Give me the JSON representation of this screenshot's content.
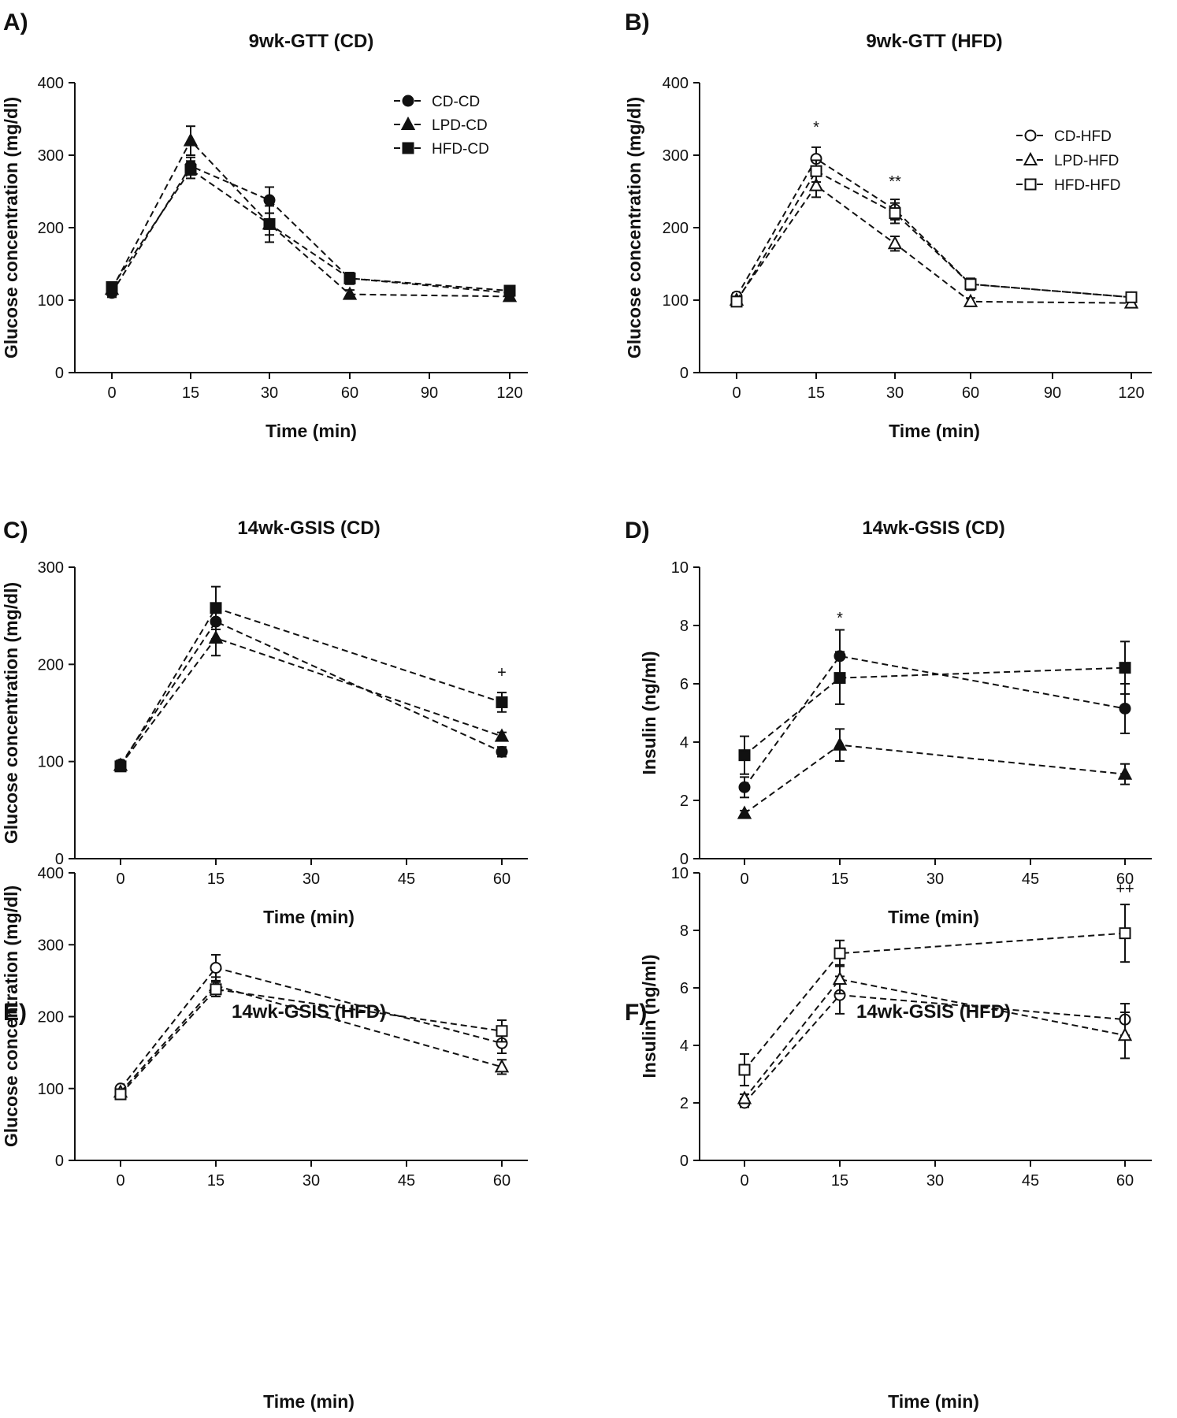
{
  "chart_data": [
    {
      "type": "line",
      "panel_label": "A)",
      "title": "9wk-GTT (CD)",
      "xlabel": "Time (min)",
      "ylabel": "Glucose concentration (mg/dl)",
      "x_ticks": [
        "0",
        "15",
        "30",
        "60",
        "90",
        "120"
      ],
      "ylim": [
        0,
        400
      ],
      "y_ticks": [
        0,
        100,
        200,
        300,
        400
      ],
      "legend_position": "top-right",
      "series": [
        {
          "name": "CD-CD",
          "marker": "circle",
          "fill": "filled",
          "x_index": [
            0,
            1,
            2,
            3,
            5
          ],
          "values": [
            110,
            285,
            238,
            130,
            110
          ],
          "errors": [
            6,
            12,
            18,
            8,
            5
          ]
        },
        {
          "name": "LPD-CD",
          "marker": "triangle",
          "fill": "filled",
          "x_index": [
            0,
            1,
            2,
            3,
            5
          ],
          "values": [
            115,
            320,
            205,
            108,
            105
          ],
          "errors": [
            6,
            20,
            25,
            6,
            5
          ]
        },
        {
          "name": "HFD-CD",
          "marker": "square",
          "fill": "filled",
          "x_index": [
            0,
            1,
            2,
            3,
            5
          ],
          "values": [
            118,
            280,
            205,
            130,
            113
          ],
          "errors": [
            6,
            12,
            15,
            6,
            5
          ]
        }
      ],
      "annotations": []
    },
    {
      "type": "line",
      "panel_label": "B)",
      "title": "9wk-GTT (HFD)",
      "xlabel": "Time (min)",
      "ylabel": "Glucose concentration (mg/dl)",
      "x_ticks": [
        "0",
        "15",
        "30",
        "60",
        "90",
        "120"
      ],
      "ylim": [
        0,
        400
      ],
      "y_ticks": [
        0,
        100,
        200,
        300,
        400
      ],
      "legend_position": "top-right",
      "series": [
        {
          "name": "CD-HFD",
          "marker": "circle",
          "fill": "open",
          "x_index": [
            0,
            1,
            2,
            3,
            5
          ],
          "values": [
            105,
            295,
            225,
            122,
            104
          ],
          "errors": [
            5,
            16,
            14,
            8,
            5
          ]
        },
        {
          "name": "LPD-HFD",
          "marker": "triangle",
          "fill": "open",
          "x_index": [
            0,
            1,
            2,
            3,
            5
          ],
          "values": [
            100,
            258,
            178,
            98,
            96
          ],
          "errors": [
            5,
            16,
            10,
            5,
            5
          ]
        },
        {
          "name": "HFD-HFD",
          "marker": "square",
          "fill": "open",
          "x_index": [
            0,
            1,
            2,
            3,
            5
          ],
          "values": [
            98,
            278,
            220,
            122,
            104
          ],
          "errors": [
            5,
            15,
            14,
            8,
            5
          ]
        }
      ],
      "annotations": [
        {
          "text": "*",
          "x_index": 1,
          "y": 340
        },
        {
          "text": "**",
          "x_index": 2,
          "y": 265
        }
      ]
    },
    {
      "type": "line",
      "panel_label": "C)",
      "title": "14wk-GSIS (CD)",
      "xlabel": "Time (min)",
      "ylabel": "Glucose concentration (mg/dl)",
      "x_ticks": [
        "0",
        "15",
        "30",
        "45",
        "60"
      ],
      "x_values": [
        0,
        15,
        30,
        45,
        60
      ],
      "ylim": [
        0,
        300
      ],
      "y_ticks": [
        0,
        100,
        200,
        300
      ],
      "series": [
        {
          "name": "CD-CD",
          "marker": "circle",
          "fill": "filled",
          "x": [
            0,
            15,
            60
          ],
          "values": [
            97,
            244,
            110
          ],
          "errors": [
            4,
            18,
            5
          ]
        },
        {
          "name": "LPD-CD",
          "marker": "triangle",
          "fill": "filled",
          "x": [
            0,
            15,
            60
          ],
          "values": [
            96,
            227,
            126
          ],
          "errors": [
            4,
            18,
            4
          ]
        },
        {
          "name": "HFD-CD",
          "marker": "square",
          "fill": "filled",
          "x": [
            0,
            15,
            60
          ],
          "values": [
            95,
            258,
            161
          ],
          "errors": [
            4,
            22,
            10
          ]
        }
      ],
      "annotations": [
        {
          "text": "+",
          "x": 60,
          "y": 193
        }
      ]
    },
    {
      "type": "line",
      "panel_label": "D)",
      "title": "14wk-GSIS (CD)",
      "xlabel": "Time (min)",
      "ylabel": "Insulin (ng/ml)",
      "x_ticks": [
        "0",
        "15",
        "30",
        "45",
        "60"
      ],
      "x_values": [
        0,
        15,
        30,
        45,
        60
      ],
      "ylim": [
        0,
        10
      ],
      "y_ticks": [
        0,
        2,
        4,
        6,
        8,
        10
      ],
      "series": [
        {
          "name": "CD-CD",
          "marker": "circle",
          "fill": "filled",
          "x": [
            0,
            15,
            60
          ],
          "values": [
            2.45,
            6.95,
            5.15
          ],
          "errors": [
            0.35,
            0.9,
            0.85
          ]
        },
        {
          "name": "LPD-CD",
          "marker": "triangle",
          "fill": "filled",
          "x": [
            0,
            15,
            60
          ],
          "values": [
            1.55,
            3.9,
            2.9
          ],
          "errors": [
            0.1,
            0.55,
            0.35
          ]
        },
        {
          "name": "HFD-CD",
          "marker": "square",
          "fill": "filled",
          "x": [
            0,
            15,
            60
          ],
          "values": [
            3.55,
            6.2,
            6.55
          ],
          "errors": [
            0.65,
            0.9,
            0.9
          ]
        }
      ],
      "annotations": [
        {
          "text": "*",
          "x": 15,
          "y": 8.3
        }
      ]
    },
    {
      "type": "line",
      "panel_label": "E)",
      "title": "14wk-GSIS (HFD)",
      "xlabel": "Time (min)",
      "ylabel": "Glucose concentration (mg/dl)",
      "x_ticks": [
        "0",
        "15",
        "30",
        "45",
        "60"
      ],
      "x_values": [
        0,
        15,
        30,
        45,
        60
      ],
      "ylim": [
        0,
        400
      ],
      "y_ticks": [
        0,
        100,
        200,
        300,
        400
      ],
      "series": [
        {
          "name": "CD-HFD",
          "marker": "circle",
          "fill": "open",
          "x": [
            0,
            15,
            60
          ],
          "values": [
            100,
            268,
            163
          ],
          "errors": [
            4,
            18,
            14
          ]
        },
        {
          "name": "LPD-HFD",
          "marker": "triangle",
          "fill": "open",
          "x": [
            0,
            15,
            60
          ],
          "values": [
            95,
            243,
            130
          ],
          "errors": [
            4,
            12,
            10
          ]
        },
        {
          "name": "HFD-HFD",
          "marker": "square",
          "fill": "open",
          "x": [
            0,
            15,
            60
          ],
          "values": [
            92,
            238,
            180
          ],
          "errors": [
            4,
            10,
            15
          ]
        }
      ],
      "annotations": []
    },
    {
      "type": "line",
      "panel_label": "F)",
      "title": "14wk-GSIS (HFD)",
      "xlabel": "Time (min)",
      "ylabel": "Insulin (ng/ml)",
      "x_ticks": [
        "0",
        "15",
        "30",
        "45",
        "60"
      ],
      "x_values": [
        0,
        15,
        30,
        45,
        60
      ],
      "ylim": [
        0,
        10
      ],
      "y_ticks": [
        0,
        2,
        4,
        6,
        8,
        10
      ],
      "series": [
        {
          "name": "CD-HFD",
          "marker": "circle",
          "fill": "open",
          "x": [
            0,
            15,
            60
          ],
          "values": [
            2.0,
            5.75,
            4.9
          ],
          "errors": [
            0.15,
            0.65,
            0.55
          ]
        },
        {
          "name": "LPD-HFD",
          "marker": "triangle",
          "fill": "open",
          "x": [
            0,
            15,
            60
          ],
          "values": [
            2.15,
            6.3,
            4.35
          ],
          "errors": [
            0.15,
            0.5,
            0.8
          ]
        },
        {
          "name": "HFD-HFD",
          "marker": "square",
          "fill": "open",
          "x": [
            0,
            15,
            60
          ],
          "values": [
            3.15,
            7.2,
            7.9
          ],
          "errors": [
            0.55,
            0.45,
            1.0
          ]
        }
      ],
      "annotations": [
        {
          "text": "++",
          "x": 60,
          "y": 9.5
        }
      ]
    }
  ]
}
